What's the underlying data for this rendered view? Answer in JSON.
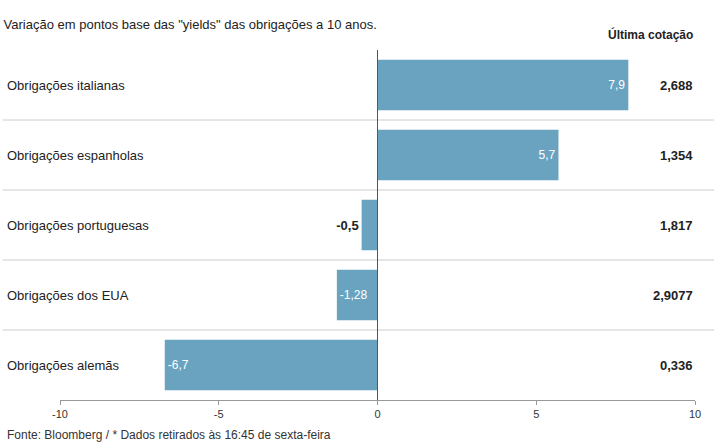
{
  "chart_data": {
    "type": "bar",
    "orientation": "horizontal",
    "title": "Variação em pontos base das \"yields\" das obrigações a 10 anos.",
    "source": "Fonte: Bloomberg / * Dados retirados às 16:45 de sexta-feira",
    "categories": [
      "Obrigações italianas",
      "Obrigações espanholas",
      "Obrigações portuguesas",
      "Obrigações dos EUA",
      "Obrigações alemãs"
    ],
    "values": [
      7.9,
      5.7,
      -0.5,
      -1.28,
      -6.7
    ],
    "value_labels": [
      "7,9",
      "5,7",
      "-0,5",
      "-1,28",
      "-6,7"
    ],
    "data_labels": true,
    "color": "#6aa3bf",
    "xlim": [
      -10,
      10
    ],
    "xticks": [
      -10,
      -5,
      0,
      5,
      10
    ],
    "last_quote": {
      "title": "Última cotação",
      "values": [
        "2,688",
        "1,354",
        "1,817",
        "2,9077",
        "0,336"
      ]
    }
  }
}
